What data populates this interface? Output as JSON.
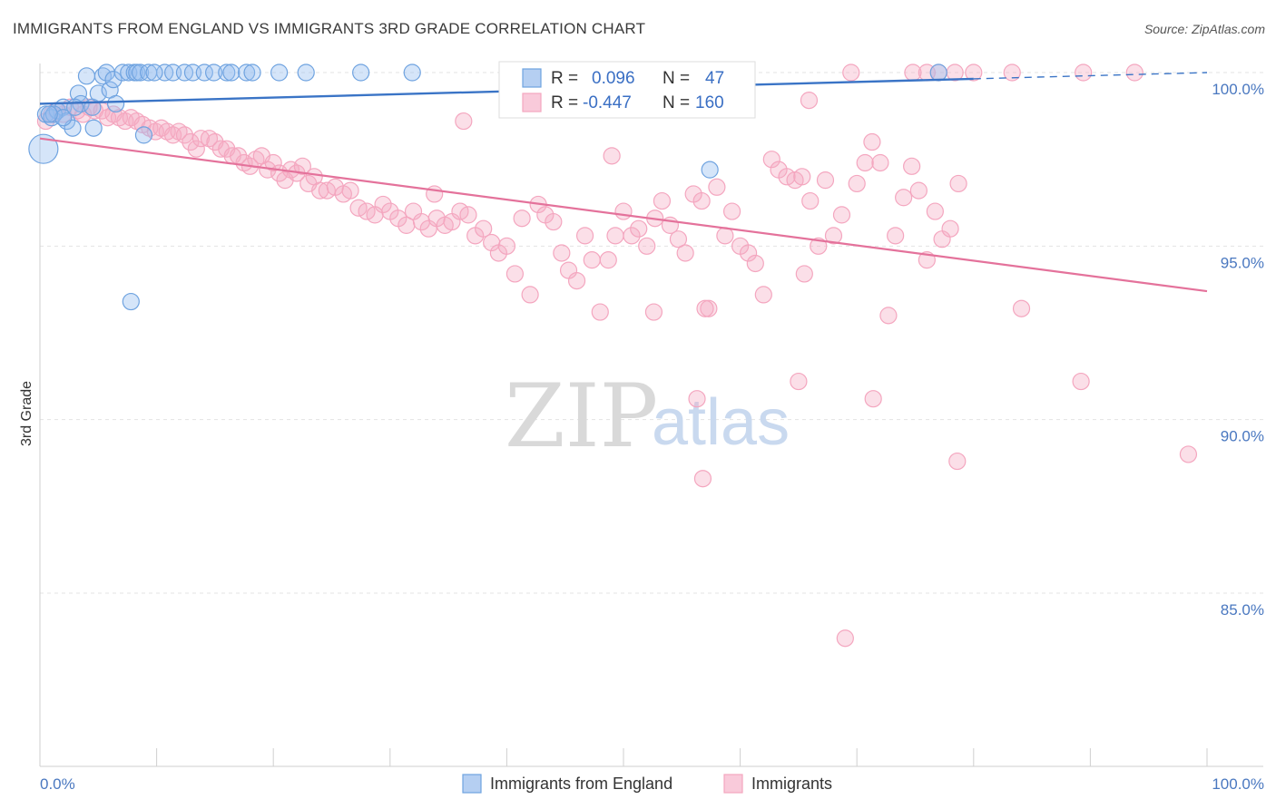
{
  "header": {
    "title": "IMMIGRANTS FROM ENGLAND VS IMMIGRANTS 3RD GRADE CORRELATION CHART",
    "source": "Source: ZipAtlas.com"
  },
  "watermark": {
    "zip": "ZIP",
    "atlas": "atlas"
  },
  "colors": {
    "blue": "#6fa3e0",
    "blue_line": "#3a74c6",
    "pink": "#f4a6bf",
    "pink_line": "#e4729b"
  },
  "legend": {
    "r_label": "R =",
    "n_label": "N =",
    "blue": {
      "r": "0.096",
      "n": "47"
    },
    "pink": {
      "r": "-0.447",
      "n": "160"
    }
  },
  "bottom_legend": {
    "blue": "Immigrants from England",
    "pink": "Immigrants"
  },
  "chart_data": {
    "type": "scatter",
    "ylabel": "3rd Grade",
    "xlim": [
      0,
      100
    ],
    "ylim": [
      80,
      100.6
    ],
    "x_tick_labels": [
      "0.0%",
      "100.0%"
    ],
    "y_tick_labels": [
      {
        "v": 100,
        "label": "100.0%"
      },
      {
        "v": 95,
        "label": "95.0%"
      },
      {
        "v": 90,
        "label": "90.0%"
      },
      {
        "v": 85,
        "label": "85.0%"
      }
    ],
    "series": [
      {
        "name": "Immigrants from England",
        "color": "#6fa3e0",
        "trend": {
          "x0": 0,
          "y0": 99.1,
          "x1": 100,
          "y1": 100.0,
          "solid_until": 80
        },
        "points": [
          [
            0.3,
            97.8
          ],
          [
            0.5,
            98.8
          ],
          [
            1.0,
            98.7
          ],
          [
            1.5,
            98.9
          ],
          [
            2.0,
            99.0
          ],
          [
            2.3,
            98.6
          ],
          [
            2.8,
            98.4
          ],
          [
            3.3,
            99.4
          ],
          [
            3.5,
            99.1
          ],
          [
            4.0,
            99.9
          ],
          [
            4.5,
            99.0
          ],
          [
            4.6,
            98.4
          ],
          [
            5.0,
            99.4
          ],
          [
            5.4,
            99.9
          ],
          [
            5.7,
            100.0
          ],
          [
            6.0,
            99.5
          ],
          [
            6.3,
            99.8
          ],
          [
            6.5,
            99.1
          ],
          [
            7.1,
            100.0
          ],
          [
            7.6,
            100.0
          ],
          [
            8.1,
            100.0
          ],
          [
            8.3,
            100.0
          ],
          [
            8.6,
            100.0
          ],
          [
            8.9,
            98.2
          ],
          [
            9.3,
            100.0
          ],
          [
            10.7,
            100.0
          ],
          [
            11.4,
            100.0
          ],
          [
            12.4,
            100.0
          ],
          [
            13.1,
            100.0
          ],
          [
            14.1,
            100.0
          ],
          [
            14.9,
            100.0
          ],
          [
            16.0,
            100.0
          ],
          [
            16.4,
            100.0
          ],
          [
            17.7,
            100.0
          ],
          [
            18.2,
            100.0
          ],
          [
            20.5,
            100.0
          ],
          [
            22.8,
            100.0
          ],
          [
            27.5,
            100.0
          ],
          [
            31.9,
            100.0
          ],
          [
            57.4,
            97.2
          ],
          [
            77.0,
            100.0
          ],
          [
            7.8,
            93.4
          ],
          [
            1.2,
            98.8
          ],
          [
            2.0,
            98.7
          ],
          [
            0.8,
            98.8
          ],
          [
            3.0,
            99.0
          ],
          [
            9.8,
            100.0
          ]
        ]
      },
      {
        "name": "Immigrants",
        "color": "#f4a6bf",
        "trend": {
          "x0": 0,
          "y0": 98.1,
          "x1": 100,
          "y1": 93.7
        },
        "points": [
          [
            0.5,
            98.6
          ],
          [
            1.0,
            98.8
          ],
          [
            1.4,
            98.9
          ],
          [
            2.0,
            98.8
          ],
          [
            2.6,
            99.0
          ],
          [
            3.2,
            98.9
          ],
          [
            3.7,
            98.8
          ],
          [
            4.2,
            99.0
          ],
          [
            4.7,
            98.9
          ],
          [
            5.3,
            98.9
          ],
          [
            5.8,
            98.7
          ],
          [
            6.3,
            98.8
          ],
          [
            6.8,
            98.7
          ],
          [
            7.3,
            98.6
          ],
          [
            7.8,
            98.7
          ],
          [
            8.3,
            98.6
          ],
          [
            8.8,
            98.5
          ],
          [
            9.4,
            98.4
          ],
          [
            9.9,
            98.3
          ],
          [
            10.4,
            98.4
          ],
          [
            10.9,
            98.3
          ],
          [
            11.4,
            98.2
          ],
          [
            11.9,
            98.3
          ],
          [
            12.4,
            98.2
          ],
          [
            12.9,
            98.0
          ],
          [
            13.4,
            97.8
          ],
          [
            13.8,
            98.1
          ],
          [
            14.5,
            98.1
          ],
          [
            15.0,
            98.0
          ],
          [
            15.5,
            97.8
          ],
          [
            16.0,
            97.8
          ],
          [
            16.5,
            97.6
          ],
          [
            17.0,
            97.6
          ],
          [
            17.5,
            97.4
          ],
          [
            18.0,
            97.3
          ],
          [
            18.5,
            97.5
          ],
          [
            19.0,
            97.6
          ],
          [
            19.5,
            97.2
          ],
          [
            20.0,
            97.4
          ],
          [
            20.5,
            97.1
          ],
          [
            21.0,
            96.9
          ],
          [
            21.5,
            97.2
          ],
          [
            22.0,
            97.1
          ],
          [
            22.5,
            97.3
          ],
          [
            23.0,
            96.8
          ],
          [
            23.5,
            97.0
          ],
          [
            24.0,
            96.6
          ],
          [
            24.6,
            96.6
          ],
          [
            25.3,
            96.7
          ],
          [
            26.0,
            96.5
          ],
          [
            26.6,
            96.6
          ],
          [
            27.3,
            96.1
          ],
          [
            28.0,
            96.0
          ],
          [
            28.7,
            95.9
          ],
          [
            29.4,
            96.2
          ],
          [
            30.0,
            96.0
          ],
          [
            30.7,
            95.8
          ],
          [
            31.4,
            95.6
          ],
          [
            32.0,
            96.0
          ],
          [
            32.7,
            95.7
          ],
          [
            33.3,
            95.5
          ],
          [
            34.0,
            95.8
          ],
          [
            34.7,
            95.6
          ],
          [
            35.3,
            95.7
          ],
          [
            36.0,
            96.0
          ],
          [
            36.7,
            95.9
          ],
          [
            37.3,
            95.3
          ],
          [
            38.0,
            95.5
          ],
          [
            38.7,
            95.1
          ],
          [
            39.3,
            94.8
          ],
          [
            40.0,
            95.0
          ],
          [
            40.7,
            94.2
          ],
          [
            41.3,
            95.8
          ],
          [
            42.0,
            93.6
          ],
          [
            42.7,
            96.2
          ],
          [
            43.3,
            95.9
          ],
          [
            44.0,
            95.7
          ],
          [
            44.7,
            94.8
          ],
          [
            45.3,
            94.3
          ],
          [
            46.0,
            94.0
          ],
          [
            46.7,
            95.3
          ],
          [
            47.3,
            94.6
          ],
          [
            48.0,
            93.1
          ],
          [
            48.7,
            94.6
          ],
          [
            49.3,
            95.3
          ],
          [
            50.0,
            96.0
          ],
          [
            50.7,
            95.3
          ],
          [
            51.3,
            95.5
          ],
          [
            52.0,
            95.0
          ],
          [
            52.7,
            95.8
          ],
          [
            53.3,
            96.3
          ],
          [
            54.0,
            95.6
          ],
          [
            54.7,
            95.2
          ],
          [
            55.3,
            94.8
          ],
          [
            56.0,
            96.5
          ],
          [
            56.7,
            96.3
          ],
          [
            57.3,
            93.2
          ],
          [
            58.0,
            96.7
          ],
          [
            58.7,
            95.3
          ],
          [
            59.3,
            96.0
          ],
          [
            60.0,
            95.0
          ],
          [
            60.7,
            94.8
          ],
          [
            61.3,
            94.5
          ],
          [
            62.0,
            93.6
          ],
          [
            62.7,
            97.5
          ],
          [
            63.3,
            97.2
          ],
          [
            64.0,
            97.0
          ],
          [
            64.7,
            96.9
          ],
          [
            65.3,
            97.0
          ],
          [
            66.0,
            96.3
          ],
          [
            66.7,
            95.0
          ],
          [
            67.3,
            96.9
          ],
          [
            68.0,
            95.3
          ],
          [
            68.7,
            95.9
          ],
          [
            70.0,
            96.8
          ],
          [
            70.7,
            97.4
          ],
          [
            71.3,
            98.0
          ],
          [
            72.0,
            97.4
          ],
          [
            72.7,
            93.0
          ],
          [
            73.3,
            95.3
          ],
          [
            74.0,
            96.4
          ],
          [
            74.7,
            97.3
          ],
          [
            75.3,
            96.6
          ],
          [
            76.0,
            94.6
          ],
          [
            76.7,
            96.0
          ],
          [
            77.3,
            95.2
          ],
          [
            78.0,
            95.5
          ],
          [
            78.7,
            96.8
          ],
          [
            49.0,
            97.6
          ],
          [
            57.0,
            93.2
          ],
          [
            52.6,
            93.1
          ],
          [
            33.8,
            96.5
          ],
          [
            56.3,
            90.6
          ],
          [
            56.8,
            88.3
          ],
          [
            65.5,
            94.2
          ],
          [
            69.5,
            100.0
          ],
          [
            74.8,
            100.0
          ],
          [
            78.4,
            100.0
          ],
          [
            83.3,
            100.0
          ],
          [
            89.4,
            100.0
          ],
          [
            93.8,
            100.0
          ],
          [
            84.1,
            93.2
          ],
          [
            89.2,
            91.1
          ],
          [
            65.0,
            91.1
          ],
          [
            69.0,
            83.7
          ],
          [
            71.4,
            90.6
          ],
          [
            78.6,
            88.8
          ],
          [
            98.4,
            89.0
          ],
          [
            76.0,
            100.0
          ],
          [
            77.0,
            100.0
          ],
          [
            80.0,
            100.0
          ],
          [
            65.9,
            99.2
          ],
          [
            36.3,
            98.6
          ]
        ]
      }
    ],
    "legend_position": "top-center",
    "grid": true
  }
}
